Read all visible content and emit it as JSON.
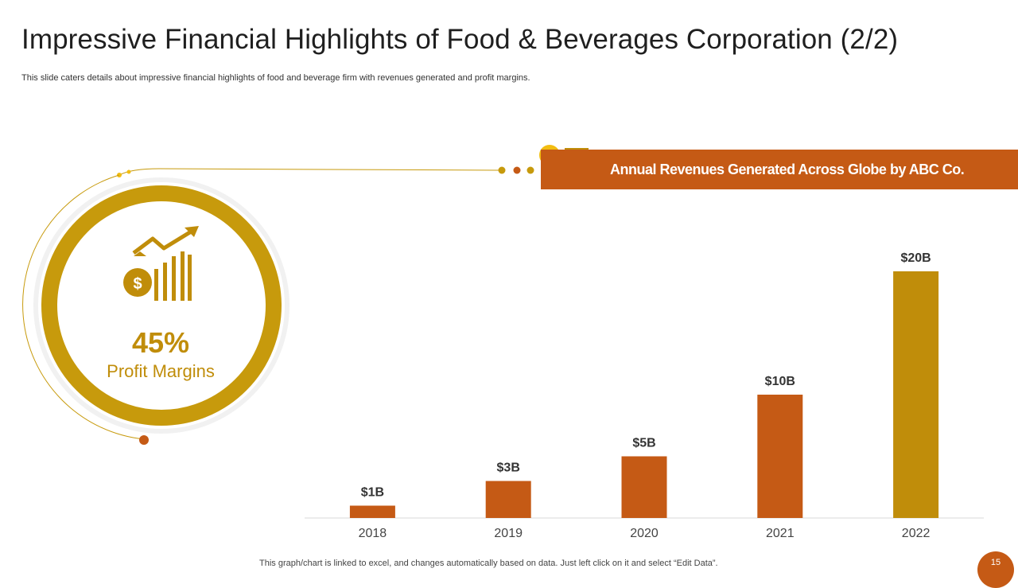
{
  "slide": {
    "title": "Impressive Financial Highlights of Food & Beverages Corporation (2/2)",
    "subtitle": "This slide caters details about impressive financial highlights of food and beverage firm with revenues generated and profit margins.",
    "banner_text": "Annual Revenues Generated Across Globe by ABC Co.",
    "footer_note": "This graph/chart is linked to excel,  and changes automatically based on data. Just left click on it and select “Edit Data”.",
    "page_number": "15"
  },
  "kpi": {
    "value": "45%",
    "label": "Profit Margins",
    "icon": "money-bag-growth-icon"
  },
  "icons": {
    "banner": "building-dollar-icon"
  },
  "colors": {
    "accent_orange": "#c55a15",
    "accent_gold": "#c08d0a",
    "highlight_yellow": "#f2bd12",
    "ring_gold": "#c79a0c"
  },
  "chart_data": {
    "type": "bar",
    "title": "",
    "xlabel": "",
    "ylabel": "",
    "categories": [
      "2018",
      "2019",
      "2020",
      "2021",
      "2022"
    ],
    "values": [
      1,
      3,
      5,
      10,
      20
    ],
    "data_labels": [
      "$1B",
      "$3B",
      "$5B",
      "$10B",
      "$20B"
    ],
    "unit": "B USD",
    "ylim": [
      0,
      20
    ],
    "bar_colors": [
      "#c55a15",
      "#c55a15",
      "#c55a15",
      "#c55a15",
      "#c08d0a"
    ],
    "grid": false,
    "legend": "none"
  }
}
